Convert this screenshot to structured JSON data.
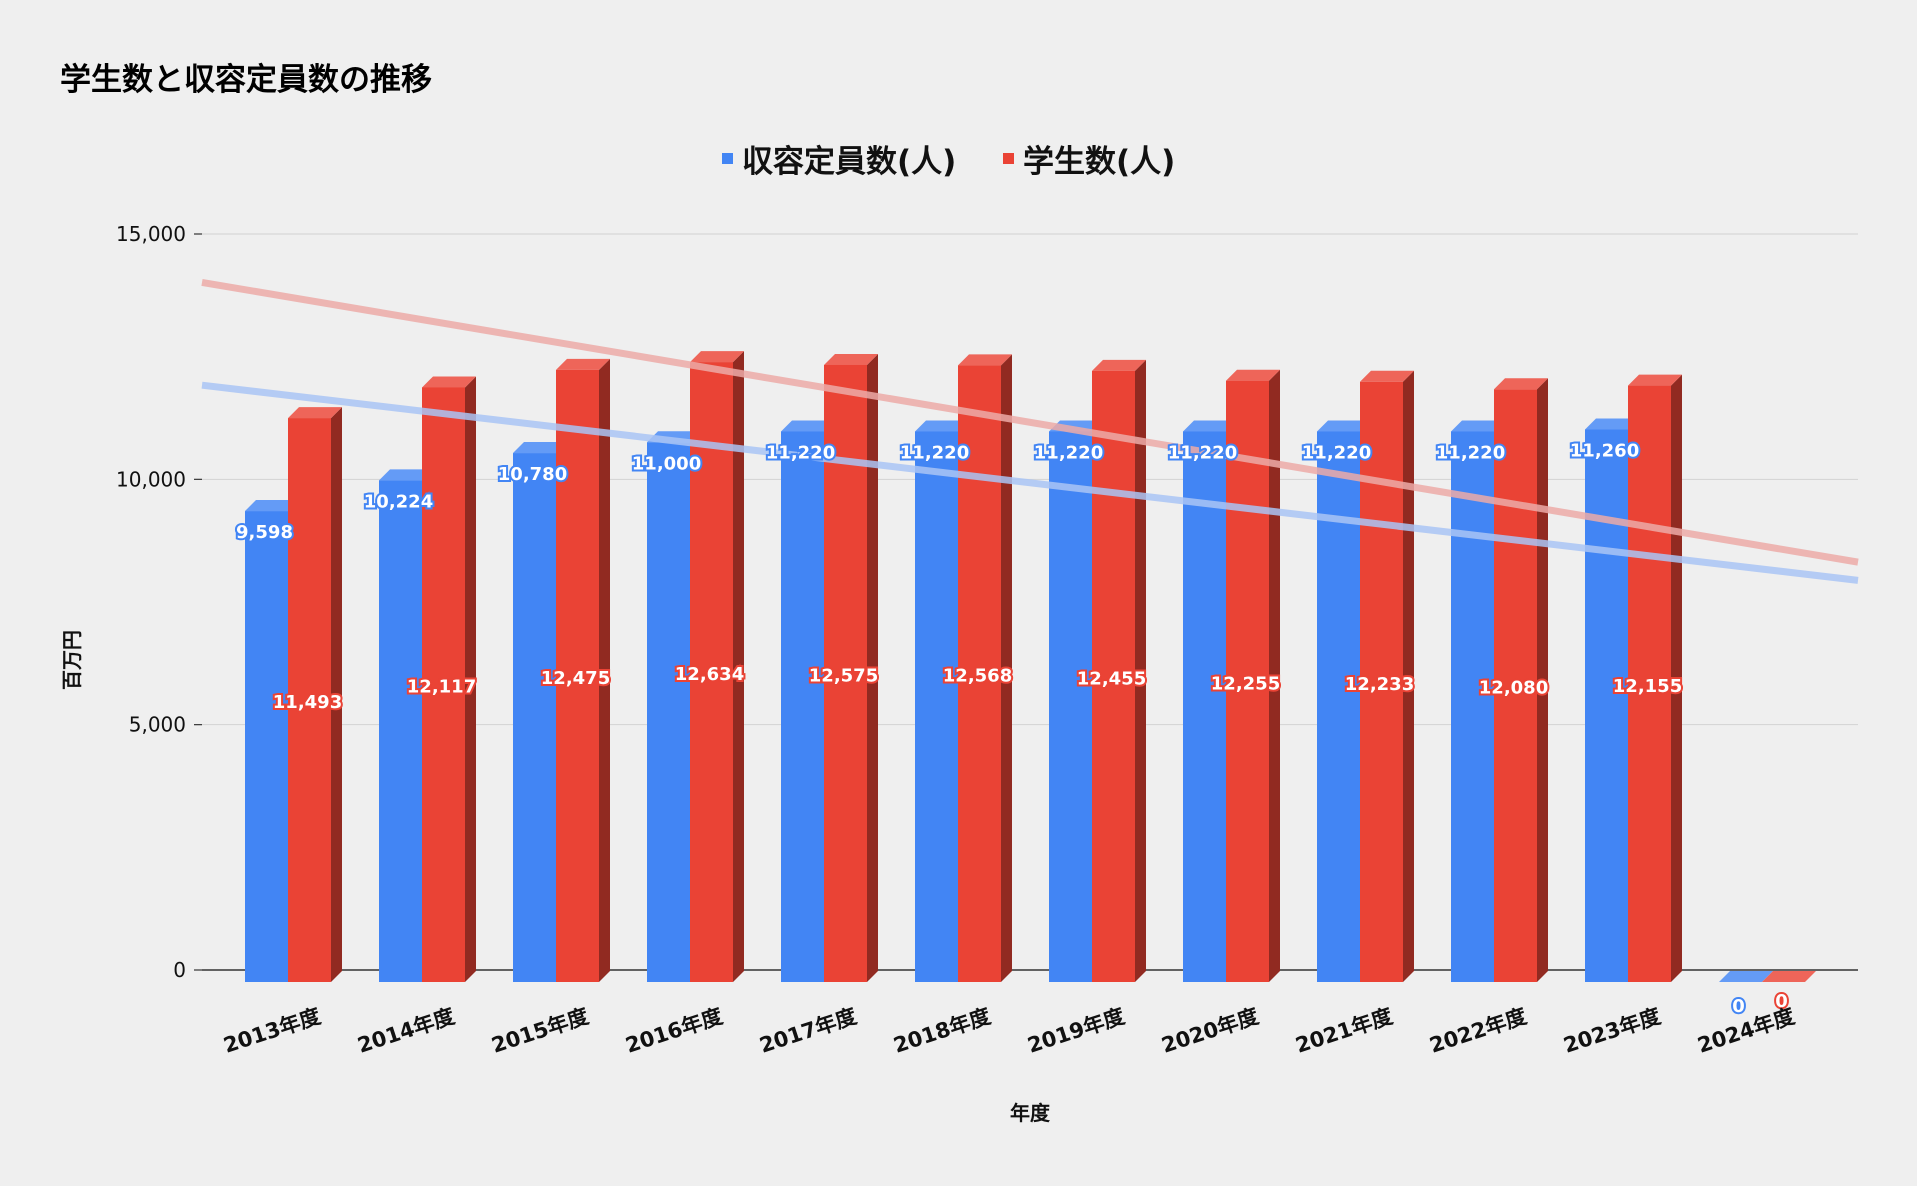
{
  "chart_data": {
    "type": "bar",
    "title": "学生数と収容定員数の推移",
    "xlabel": "年度",
    "ylabel": "百万円",
    "categories": [
      "2013年度",
      "2014年度",
      "2015年度",
      "2016年度",
      "2017年度",
      "2018年度",
      "2019年度",
      "2020年度",
      "2021年度",
      "2022年度",
      "2023年度",
      "2024年度"
    ],
    "series": [
      {
        "name": "収容定員数(人)",
        "color": "#4285f4",
        "values": [
          9598,
          10224,
          10780,
          11000,
          11220,
          11220,
          11220,
          11220,
          11220,
          11220,
          11260,
          0
        ]
      },
      {
        "name": "学生数(人)",
        "color": "#ea4335",
        "values": [
          11493,
          12117,
          12475,
          12634,
          12575,
          12568,
          12455,
          12255,
          12233,
          12080,
          12155,
          0
        ]
      }
    ],
    "data_labels": [
      [
        "9,598",
        "10,224",
        "10,780",
        "11,000",
        "11,220",
        "11,220",
        "11,220",
        "11,220",
        "11,220",
        "11,220",
        "11,260",
        "0"
      ],
      [
        "11,493",
        "12,117",
        "12,475",
        "12,634",
        "12,575",
        "12,568",
        "12,455",
        "12,255",
        "12,233",
        "12,080",
        "12,155",
        "0"
      ]
    ],
    "yticks": [
      "0",
      "5,000",
      "10,000",
      "15,000"
    ],
    "ylim": [
      0,
      15000
    ],
    "grid": true,
    "legend": "top",
    "trendlines": "linear"
  }
}
